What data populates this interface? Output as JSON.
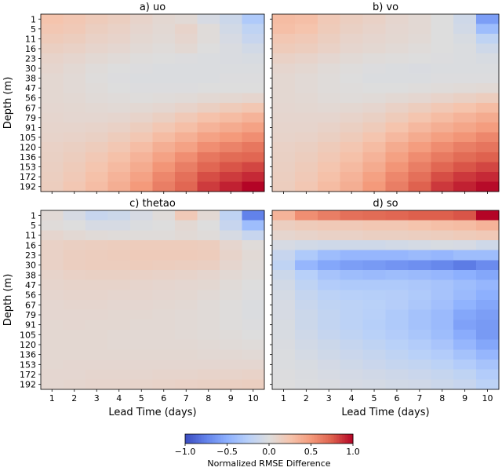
{
  "chart_data": [
    {
      "type": "heatmap",
      "title": "a) uo",
      "ylabel": "Depth (m)",
      "xlabel": "",
      "x": [
        1,
        2,
        3,
        4,
        5,
        6,
        7,
        8,
        9,
        10
      ],
      "y": [
        1,
        5,
        11,
        16,
        23,
        30,
        38,
        47,
        56,
        67,
        79,
        91,
        105,
        120,
        136,
        153,
        172,
        192
      ],
      "values": [
        [
          0.25,
          0.22,
          0.18,
          0.15,
          0.1,
          0.06,
          0.04,
          -0.05,
          -0.12,
          -0.3
        ],
        [
          0.22,
          0.2,
          0.15,
          0.12,
          0.08,
          0.05,
          0.1,
          0.02,
          -0.08,
          -0.2
        ],
        [
          0.18,
          0.16,
          0.12,
          0.1,
          0.06,
          0.04,
          0.08,
          0.02,
          -0.05,
          -0.15
        ],
        [
          0.14,
          0.12,
          0.09,
          0.07,
          0.04,
          0.02,
          0.05,
          0.0,
          -0.03,
          -0.08
        ],
        [
          0.1,
          0.08,
          0.05,
          0.03,
          0.01,
          0.0,
          -0.01,
          -0.02,
          -0.03,
          -0.04
        ],
        [
          0.08,
          0.05,
          0.02,
          0.0,
          -0.01,
          -0.02,
          -0.02,
          -0.02,
          -0.02,
          -0.02
        ],
        [
          0.06,
          0.04,
          0.01,
          -0.01,
          -0.02,
          -0.02,
          -0.02,
          -0.02,
          -0.01,
          -0.01
        ],
        [
          0.06,
          0.04,
          0.02,
          0.0,
          -0.01,
          -0.01,
          -0.01,
          0.0,
          0.0,
          0.0
        ],
        [
          0.06,
          0.05,
          0.03,
          0.02,
          0.01,
          0.02,
          0.03,
          0.05,
          0.06,
          0.08
        ],
        [
          0.07,
          0.06,
          0.05,
          0.04,
          0.05,
          0.07,
          0.1,
          0.14,
          0.18,
          0.22
        ],
        [
          0.08,
          0.07,
          0.07,
          0.08,
          0.1,
          0.14,
          0.2,
          0.26,
          0.3,
          0.35
        ],
        [
          0.09,
          0.09,
          0.1,
          0.12,
          0.16,
          0.22,
          0.28,
          0.35,
          0.4,
          0.45
        ],
        [
          0.1,
          0.11,
          0.13,
          0.17,
          0.22,
          0.3,
          0.37,
          0.45,
          0.5,
          0.55
        ],
        [
          0.12,
          0.14,
          0.17,
          0.22,
          0.29,
          0.38,
          0.45,
          0.55,
          0.6,
          0.65
        ],
        [
          0.13,
          0.16,
          0.21,
          0.27,
          0.35,
          0.45,
          0.55,
          0.65,
          0.7,
          0.72
        ],
        [
          0.14,
          0.18,
          0.24,
          0.31,
          0.4,
          0.52,
          0.62,
          0.72,
          0.78,
          0.82
        ],
        [
          0.15,
          0.2,
          0.27,
          0.35,
          0.45,
          0.58,
          0.68,
          0.8,
          0.85,
          0.9
        ],
        [
          0.16,
          0.22,
          0.29,
          0.38,
          0.5,
          0.62,
          0.72,
          0.85,
          0.92,
          1.0
        ]
      ]
    },
    {
      "type": "heatmap",
      "title": "b) vo",
      "ylabel": "",
      "xlabel": "",
      "x": [
        1,
        2,
        3,
        4,
        5,
        6,
        7,
        8,
        9,
        10
      ],
      "y": [
        1,
        5,
        11,
        16,
        23,
        30,
        38,
        47,
        56,
        67,
        79,
        91,
        105,
        120,
        136,
        153,
        172,
        192
      ],
      "values": [
        [
          0.3,
          0.28,
          0.2,
          0.15,
          0.12,
          0.08,
          0.05,
          0.0,
          -0.1,
          -0.6
        ],
        [
          0.28,
          0.25,
          0.18,
          0.13,
          0.1,
          0.07,
          0.05,
          0.0,
          -0.08,
          -0.4
        ],
        [
          0.22,
          0.2,
          0.15,
          0.1,
          0.08,
          0.06,
          0.04,
          0.0,
          -0.04,
          -0.2
        ],
        [
          0.18,
          0.16,
          0.12,
          0.08,
          0.06,
          0.04,
          0.02,
          0.0,
          -0.02,
          -0.1
        ],
        [
          0.12,
          0.1,
          0.07,
          0.04,
          0.02,
          0.01,
          0.0,
          -0.01,
          -0.02,
          -0.04
        ],
        [
          0.08,
          0.06,
          0.03,
          0.01,
          -0.01,
          -0.02,
          -0.03,
          -0.02,
          -0.02,
          -0.02
        ],
        [
          0.06,
          0.04,
          0.02,
          0.0,
          -0.02,
          -0.02,
          -0.02,
          -0.01,
          -0.01,
          -0.01
        ],
        [
          0.06,
          0.04,
          0.02,
          0.01,
          0.0,
          0.0,
          0.01,
          0.02,
          0.03,
          0.04
        ],
        [
          0.06,
          0.05,
          0.03,
          0.02,
          0.03,
          0.05,
          0.07,
          0.1,
          0.13,
          0.16
        ],
        [
          0.07,
          0.06,
          0.05,
          0.06,
          0.08,
          0.12,
          0.16,
          0.21,
          0.25,
          0.3
        ],
        [
          0.08,
          0.08,
          0.08,
          0.1,
          0.13,
          0.18,
          0.24,
          0.3,
          0.35,
          0.4
        ],
        [
          0.09,
          0.09,
          0.11,
          0.14,
          0.18,
          0.25,
          0.32,
          0.38,
          0.43,
          0.48
        ],
        [
          0.1,
          0.11,
          0.14,
          0.18,
          0.24,
          0.32,
          0.4,
          0.47,
          0.52,
          0.58
        ],
        [
          0.12,
          0.14,
          0.18,
          0.23,
          0.3,
          0.4,
          0.48,
          0.56,
          0.62,
          0.66
        ],
        [
          0.13,
          0.16,
          0.21,
          0.27,
          0.35,
          0.46,
          0.56,
          0.64,
          0.7,
          0.74
        ],
        [
          0.14,
          0.18,
          0.24,
          0.31,
          0.4,
          0.52,
          0.62,
          0.72,
          0.78,
          0.82
        ],
        [
          0.15,
          0.2,
          0.27,
          0.35,
          0.46,
          0.58,
          0.68,
          0.8,
          0.86,
          0.9
        ],
        [
          0.16,
          0.22,
          0.3,
          0.38,
          0.5,
          0.62,
          0.74,
          0.86,
          0.92,
          0.98
        ]
      ]
    },
    {
      "type": "heatmap",
      "title": "c) thetao",
      "ylabel": "Depth (m)",
      "xlabel": "Lead Time (days)",
      "x": [
        1,
        2,
        3,
        4,
        5,
        6,
        7,
        8,
        9,
        10
      ],
      "y": [
        1,
        5,
        11,
        16,
        23,
        30,
        38,
        47,
        56,
        67,
        79,
        91,
        105,
        120,
        136,
        153,
        172,
        192
      ],
      "values": [
        [
          0.04,
          -0.05,
          -0.15,
          -0.12,
          -0.05,
          0.02,
          0.2,
          0.05,
          -0.2,
          -0.75
        ],
        [
          0.02,
          0.0,
          -0.05,
          -0.05,
          -0.02,
          0.0,
          0.05,
          0.0,
          -0.15,
          -0.4
        ],
        [
          0.08,
          0.05,
          0.03,
          0.02,
          0.02,
          0.02,
          0.04,
          0.02,
          -0.05,
          -0.15
        ],
        [
          0.12,
          0.14,
          0.15,
          0.16,
          0.17,
          0.17,
          0.17,
          0.16,
          0.08,
          0.02
        ],
        [
          0.12,
          0.15,
          0.16,
          0.17,
          0.18,
          0.18,
          0.18,
          0.17,
          0.1,
          0.04
        ],
        [
          0.12,
          0.15,
          0.16,
          0.16,
          0.17,
          0.16,
          0.15,
          0.14,
          0.08,
          0.03
        ],
        [
          0.1,
          0.12,
          0.13,
          0.13,
          0.12,
          0.11,
          0.1,
          0.08,
          0.05,
          0.02
        ],
        [
          0.09,
          0.1,
          0.1,
          0.1,
          0.09,
          0.08,
          0.07,
          0.06,
          0.03,
          0.0
        ],
        [
          0.08,
          0.09,
          0.09,
          0.08,
          0.08,
          0.07,
          0.06,
          0.04,
          0.02,
          -0.01
        ],
        [
          0.07,
          0.08,
          0.08,
          0.07,
          0.07,
          0.06,
          0.05,
          0.03,
          0.01,
          -0.02
        ],
        [
          0.07,
          0.07,
          0.07,
          0.06,
          0.06,
          0.05,
          0.04,
          0.03,
          0.01,
          -0.02
        ],
        [
          0.06,
          0.07,
          0.06,
          0.06,
          0.05,
          0.05,
          0.04,
          0.03,
          0.01,
          -0.01
        ],
        [
          0.06,
          0.06,
          0.06,
          0.05,
          0.05,
          0.05,
          0.04,
          0.03,
          0.02,
          0.0
        ],
        [
          0.06,
          0.06,
          0.06,
          0.05,
          0.05,
          0.05,
          0.05,
          0.04,
          0.03,
          0.02
        ],
        [
          0.06,
          0.06,
          0.06,
          0.06,
          0.06,
          0.06,
          0.06,
          0.05,
          0.05,
          0.04
        ],
        [
          0.06,
          0.07,
          0.07,
          0.07,
          0.07,
          0.07,
          0.07,
          0.07,
          0.07,
          0.07
        ],
        [
          0.07,
          0.07,
          0.08,
          0.08,
          0.08,
          0.09,
          0.09,
          0.1,
          0.1,
          0.11
        ],
        [
          0.07,
          0.08,
          0.09,
          0.09,
          0.1,
          0.11,
          0.12,
          0.13,
          0.14,
          0.15
        ]
      ]
    },
    {
      "type": "heatmap",
      "title": "d) so",
      "ylabel": "",
      "xlabel": "Lead Time (days)",
      "x": [
        1,
        2,
        3,
        4,
        5,
        6,
        7,
        8,
        9,
        10
      ],
      "y": [
        1,
        5,
        11,
        16,
        23,
        30,
        38,
        47,
        56,
        67,
        79,
        91,
        105,
        120,
        136,
        153,
        172,
        192
      ],
      "values": [
        [
          0.35,
          0.55,
          0.62,
          0.68,
          0.7,
          0.72,
          0.75,
          0.75,
          0.78,
          1.0
        ],
        [
          0.15,
          0.18,
          0.2,
          0.2,
          0.22,
          0.22,
          0.25,
          0.28,
          0.3,
          0.35
        ],
        [
          0.08,
          0.1,
          0.12,
          0.12,
          0.14,
          0.14,
          0.15,
          0.16,
          0.18,
          0.2
        ],
        [
          -0.05,
          -0.08,
          -0.1,
          -0.1,
          -0.1,
          -0.08,
          -0.06,
          -0.04,
          -0.05,
          -0.1
        ],
        [
          -0.15,
          -0.3,
          -0.4,
          -0.45,
          -0.45,
          -0.45,
          -0.42,
          -0.45,
          -0.4,
          -0.4
        ],
        [
          -0.2,
          -0.45,
          -0.55,
          -0.6,
          -0.62,
          -0.65,
          -0.68,
          -0.72,
          -0.78,
          -0.7
        ],
        [
          -0.12,
          -0.25,
          -0.35,
          -0.4,
          -0.42,
          -0.4,
          -0.42,
          -0.45,
          -0.5,
          -0.55
        ],
        [
          -0.08,
          -0.2,
          -0.28,
          -0.3,
          -0.3,
          -0.3,
          -0.32,
          -0.35,
          -0.4,
          -0.45
        ],
        [
          -0.06,
          -0.16,
          -0.22,
          -0.25,
          -0.26,
          -0.27,
          -0.3,
          -0.35,
          -0.42,
          -0.5
        ],
        [
          -0.05,
          -0.14,
          -0.2,
          -0.22,
          -0.24,
          -0.27,
          -0.32,
          -0.38,
          -0.48,
          -0.55
        ],
        [
          -0.05,
          -0.12,
          -0.18,
          -0.22,
          -0.25,
          -0.3,
          -0.36,
          -0.42,
          -0.55,
          -0.6
        ],
        [
          -0.04,
          -0.12,
          -0.18,
          -0.22,
          -0.26,
          -0.3,
          -0.36,
          -0.42,
          -0.58,
          -0.62
        ],
        [
          -0.04,
          -0.1,
          -0.16,
          -0.2,
          -0.24,
          -0.28,
          -0.33,
          -0.4,
          -0.52,
          -0.62
        ],
        [
          -0.03,
          -0.08,
          -0.12,
          -0.16,
          -0.2,
          -0.24,
          -0.28,
          -0.34,
          -0.45,
          -0.55
        ],
        [
          -0.02,
          -0.06,
          -0.1,
          -0.13,
          -0.16,
          -0.2,
          -0.24,
          -0.28,
          -0.36,
          -0.45
        ],
        [
          -0.02,
          -0.04,
          -0.07,
          -0.1,
          -0.13,
          -0.16,
          -0.18,
          -0.22,
          -0.28,
          -0.35
        ],
        [
          -0.01,
          -0.03,
          -0.05,
          -0.07,
          -0.09,
          -0.11,
          -0.13,
          -0.16,
          -0.2,
          -0.28
        ],
        [
          0.0,
          -0.02,
          -0.03,
          -0.05,
          -0.06,
          -0.08,
          -0.09,
          -0.12,
          -0.15,
          -0.22
        ]
      ]
    }
  ],
  "colorbar": {
    "label": "Normalized RMSE Difference",
    "vmin": -1.0,
    "vmax": 1.0,
    "ticks": [
      -1.0,
      -0.5,
      0.0,
      0.5,
      1.0
    ],
    "tick_labels": [
      "−1.0",
      "−0.5",
      "0.0",
      "0.5",
      "1.0"
    ],
    "colormap": "coolwarm",
    "colors": {
      "low": "#3b4cc0",
      "mid": "#dddddd",
      "high": "#b40426"
    }
  }
}
